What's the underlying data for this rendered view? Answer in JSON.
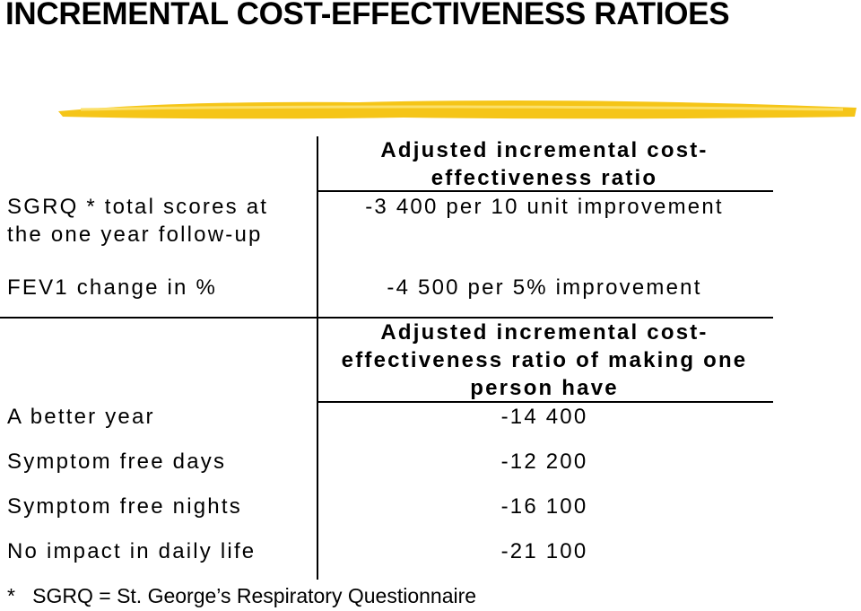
{
  "title": "INCREMENTAL COST-EFFECTIVENESS RATIOES",
  "table1": {
    "header": [
      "Adjusted incremental cost-",
      "effectiveness ratio"
    ],
    "rows": [
      {
        "label": [
          "SGRQ * total scores at",
          "the one year follow-up"
        ],
        "value": "-3 400 per 10 unit improvement"
      },
      {
        "label": [
          "FEV1 change in %"
        ],
        "value": "-4 500 per 5% improvement"
      }
    ]
  },
  "table2": {
    "header": [
      "Adjusted incremental cost-",
      "effectiveness ratio of making one",
      "person have"
    ],
    "rows": [
      {
        "label": "A better year",
        "value": "-14 400"
      },
      {
        "label": "Symptom free days",
        "value": "-12 200"
      },
      {
        "label": "Symptom free nights",
        "value": "-16 100"
      },
      {
        "label": "No impact in daily life",
        "value": "-21 100"
      }
    ]
  },
  "footnote": "*   SGRQ = St. George’s Respiratory Questionnaire"
}
